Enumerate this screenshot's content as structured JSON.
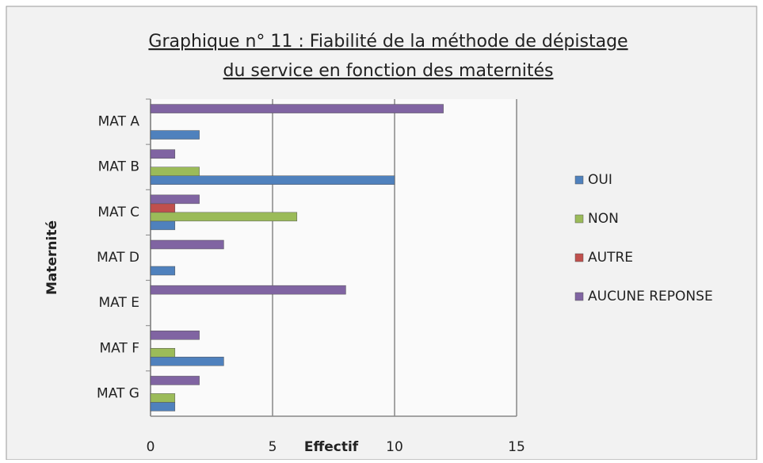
{
  "chart_data": {
    "type": "hbar",
    "title": [
      "Graphique n° 11 : Fiabilité de la méthode de dépistage",
      "du service en fonction des maternités"
    ],
    "xlabel": "Effectif",
    "ylabel": "Maternité",
    "categories": [
      "MAT A",
      "MAT B",
      "MAT C",
      "MAT D",
      "MAT E",
      "MAT F",
      "MAT G"
    ],
    "series": [
      {
        "name": "OUI",
        "color": "#4f81bd",
        "values": [
          2,
          10,
          1,
          1,
          0,
          3,
          1
        ]
      },
      {
        "name": "NON",
        "color": "#9bbb59",
        "values": [
          0,
          2,
          6,
          0,
          0,
          1,
          1
        ]
      },
      {
        "name": "AUTRE",
        "color": "#c0504d",
        "values": [
          0,
          0,
          1,
          0,
          0,
          0,
          0
        ]
      },
      {
        "name": "AUCUNE REPONSE",
        "color": "#8064a2",
        "values": [
          12,
          1,
          2,
          3,
          8,
          2,
          2
        ]
      }
    ],
    "xlim": [
      0,
      15
    ],
    "xticks": [
      0,
      5,
      10,
      15
    ],
    "grid": true,
    "legend": "right"
  }
}
